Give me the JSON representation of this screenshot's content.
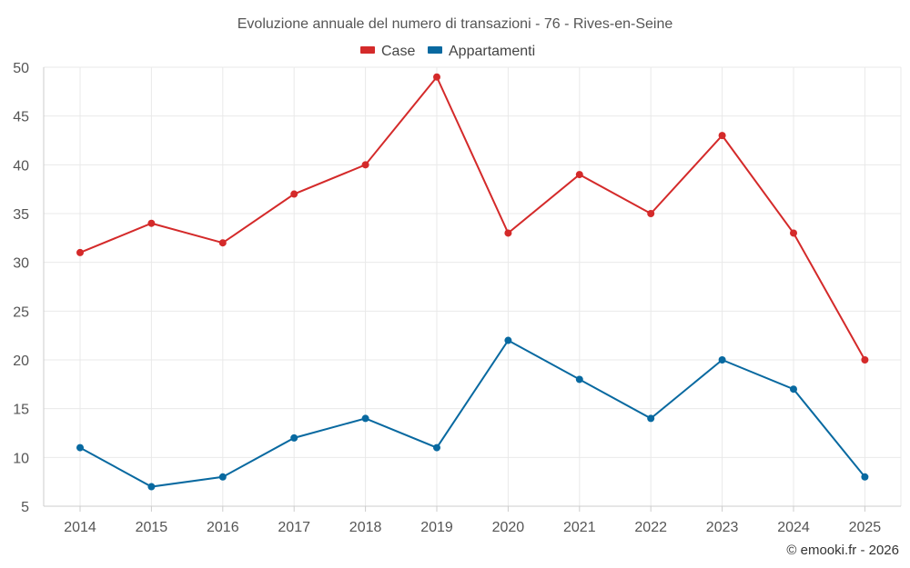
{
  "chart_data": {
    "type": "line",
    "title": "Evoluzione annuale del numero di transazioni - 76 - Rives-en-Seine",
    "categories": [
      "2014",
      "2015",
      "2016",
      "2017",
      "2018",
      "2019",
      "2020",
      "2021",
      "2022",
      "2023",
      "2024",
      "2025"
    ],
    "series": [
      {
        "name": "Case",
        "color": "#d42a2a",
        "values": [
          31,
          34,
          32,
          37,
          40,
          49,
          33,
          39,
          35,
          43,
          33,
          20
        ]
      },
      {
        "name": "Appartamenti",
        "color": "#0869a0",
        "values": [
          11,
          7,
          8,
          12,
          14,
          11,
          22,
          18,
          14,
          20,
          17,
          8
        ]
      }
    ],
    "ylim": [
      5,
      50
    ],
    "yticks": [
      5,
      10,
      15,
      20,
      25,
      30,
      35,
      40,
      45,
      50
    ],
    "xlabel": "",
    "ylabel": "",
    "grid": true,
    "legend_position": "top-center"
  },
  "credit": "© emooki.fr - 2026"
}
